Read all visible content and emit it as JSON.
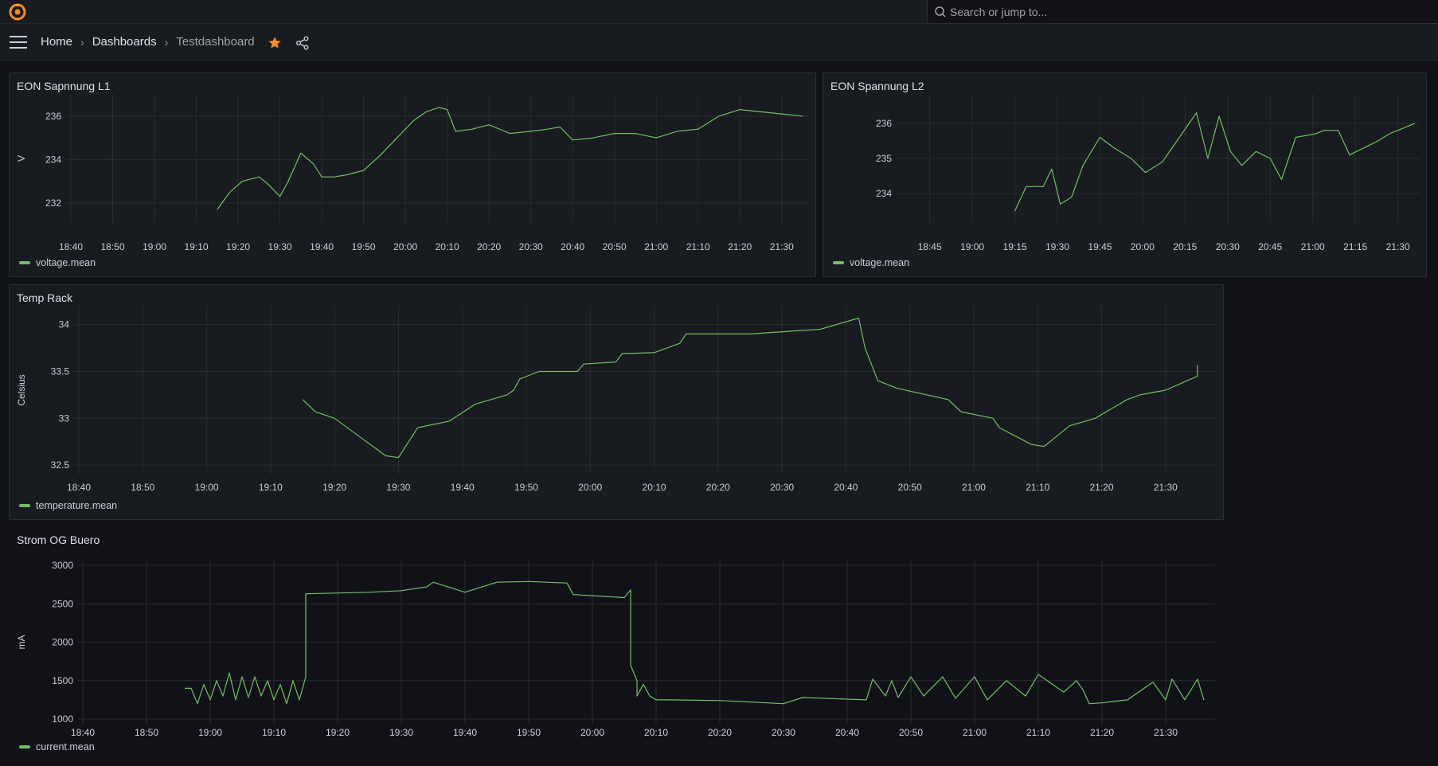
{
  "app": {
    "search_placeholder": "Search or jump to...",
    "logo": "grafana-logo-icon",
    "accent": "#f68a27"
  },
  "breadcrumb": {
    "home": "Home",
    "dashboards": "Dashboards",
    "current": "Testdashboard",
    "separator": "›"
  },
  "icons": {
    "menu": "hamburger-menu-icon",
    "star": "star-icon",
    "share": "share-icon",
    "search": "search-icon"
  },
  "series_color": "#73bf69",
  "panels": {
    "l1": {
      "title": "EON Sapnnung L1",
      "legend": "voltage.mean",
      "ylabel": "V"
    },
    "l2": {
      "title": "EON Spannung L2",
      "legend": "voltage.mean",
      "ylabel": ""
    },
    "temp": {
      "title": "Temp Rack",
      "legend": "temperature.mean",
      "ylabel": "Celsius"
    },
    "strom": {
      "title": "Strom OG Buero",
      "legend": "current.mean",
      "ylabel": "mA"
    }
  },
  "chart_data": [
    {
      "type": "line",
      "title": "EON Sapnnung L1",
      "ylabel": "V",
      "x_ticks": [
        "18:40",
        "18:50",
        "19:00",
        "19:10",
        "19:20",
        "19:30",
        "19:40",
        "19:50",
        "20:00",
        "20:10",
        "20:20",
        "20:30",
        "20:40",
        "20:50",
        "21:00",
        "21:10",
        "21:20",
        "21:30"
      ],
      "y_ticks": [
        232,
        234,
        236
      ],
      "xlim": [
        "18:40",
        "21:35"
      ],
      "ylim": [
        231.3,
        236.8
      ],
      "series": [
        {
          "name": "voltage.mean",
          "x": [
            "19:15",
            "19:18",
            "19:21",
            "19:25",
            "19:27",
            "19:30",
            "19:32",
            "19:35",
            "19:38",
            "19:40",
            "19:43",
            "19:46",
            "19:50",
            "19:54",
            "19:58",
            "20:02",
            "20:05",
            "20:08",
            "20:10",
            "20:12",
            "20:16",
            "20:20",
            "20:25",
            "20:30",
            "20:34",
            "20:37",
            "20:40",
            "20:45",
            "20:50",
            "20:55",
            "21:00",
            "21:05",
            "21:10",
            "21:15",
            "21:20",
            "21:25",
            "21:30",
            "21:35"
          ],
          "y": [
            231.7,
            232.5,
            233.0,
            233.2,
            232.9,
            232.3,
            233.0,
            234.3,
            233.8,
            233.2,
            233.2,
            233.3,
            233.5,
            234.2,
            235.0,
            235.8,
            236.2,
            236.4,
            236.3,
            235.3,
            235.4,
            235.6,
            235.2,
            235.3,
            235.4,
            235.5,
            234.9,
            235.0,
            235.2,
            235.2,
            235.0,
            235.3,
            235.4,
            236.0,
            236.3,
            236.2,
            236.1,
            236.0
          ]
        }
      ]
    },
    {
      "type": "line",
      "title": "EON Spannung L2",
      "x_ticks": [
        "18:45",
        "19:00",
        "19:15",
        "19:30",
        "19:45",
        "20:00",
        "20:15",
        "20:30",
        "20:45",
        "21:00",
        "21:15",
        "21:30"
      ],
      "y_ticks": [
        234,
        235,
        236
      ],
      "xlim": [
        "18:35",
        "21:36"
      ],
      "ylim": [
        233.3,
        236.7
      ],
      "series": [
        {
          "name": "voltage.mean",
          "x": [
            "19:15",
            "19:19",
            "19:25",
            "19:28",
            "19:31",
            "19:35",
            "19:39",
            "19:45",
            "19:50",
            "19:56",
            "20:01",
            "20:07",
            "20:13",
            "20:19",
            "20:23",
            "20:27",
            "20:31",
            "20:35",
            "20:40",
            "20:45",
            "20:49",
            "20:54",
            "21:01",
            "21:04",
            "21:09",
            "21:13",
            "21:23",
            "21:27",
            "21:36"
          ],
          "y": [
            233.5,
            234.2,
            234.2,
            234.7,
            233.7,
            233.9,
            234.8,
            235.6,
            235.3,
            235.0,
            234.6,
            234.9,
            235.6,
            236.3,
            235.0,
            236.2,
            235.2,
            234.8,
            235.2,
            235.0,
            234.4,
            235.6,
            235.7,
            235.8,
            235.8,
            235.1,
            235.5,
            235.7,
            236.0
          ]
        }
      ]
    },
    {
      "type": "line",
      "title": "Temp Rack",
      "ylabel": "Celsius",
      "x_ticks": [
        "18:40",
        "18:50",
        "19:00",
        "19:10",
        "19:20",
        "19:30",
        "19:40",
        "19:50",
        "20:00",
        "20:10",
        "20:20",
        "20:30",
        "20:40",
        "20:50",
        "21:00",
        "21:10",
        "21:20",
        "21:30"
      ],
      "y_ticks": [
        32.5,
        33,
        33.5,
        34
      ],
      "xlim": [
        "18:40",
        "21:37"
      ],
      "ylim": [
        32.45,
        34.15
      ],
      "series": [
        {
          "name": "temperature.mean",
          "x": [
            "19:15",
            "19:17",
            "19:20",
            "19:24",
            "19:28",
            "19:30",
            "19:33",
            "19:38",
            "19:42",
            "19:47",
            "19:48",
            "19:49",
            "19:52",
            "19:58",
            "19:59",
            "20:04",
            "20:05",
            "20:10",
            "20:14",
            "20:15",
            "20:25",
            "20:36",
            "20:42",
            "20:43",
            "20:45",
            "20:48",
            "20:56",
            "20:58",
            "21:03",
            "21:04",
            "21:09",
            "21:11",
            "21:15",
            "21:19",
            "21:24",
            "21:26",
            "21:30",
            "21:35",
            "21:35"
          ],
          "y": [
            33.2,
            33.07,
            33.0,
            32.8,
            32.6,
            32.58,
            32.9,
            32.97,
            33.15,
            33.25,
            33.3,
            33.42,
            33.5,
            33.5,
            33.58,
            33.6,
            33.69,
            33.7,
            33.8,
            33.9,
            33.9,
            33.95,
            34.07,
            33.75,
            33.4,
            33.32,
            33.2,
            33.07,
            33.0,
            32.9,
            32.72,
            32.7,
            32.92,
            33.0,
            33.2,
            33.25,
            33.3,
            33.45,
            33.57
          ]
        }
      ]
    },
    {
      "type": "line",
      "title": "Strom OG Buero",
      "ylabel": "mA",
      "x_ticks": [
        "18:40",
        "18:50",
        "19:00",
        "19:10",
        "19:20",
        "19:30",
        "19:40",
        "19:50",
        "20:00",
        "20:10",
        "20:20",
        "20:30",
        "20:40",
        "20:50",
        "21:00",
        "21:10",
        "21:20",
        "21:30"
      ],
      "y_ticks": [
        1000,
        1500,
        2000,
        2500,
        3000
      ],
      "xlim": [
        "18:40",
        "21:37"
      ],
      "ylim": [
        1000,
        3000
      ],
      "series": [
        {
          "name": "current.mean",
          "x": [
            "18:56",
            "18:57",
            "18:58",
            "18:59",
            "19:00",
            "19:01",
            "19:02",
            "19:03",
            "19:04",
            "19:05",
            "19:06",
            "19:07",
            "19:08",
            "19:09",
            "19:10",
            "19:11",
            "19:12",
            "19:13",
            "19:14",
            "19:15",
            "19:15",
            "19:25",
            "19:30",
            "19:34",
            "19:35",
            "19:40",
            "19:45",
            "19:50",
            "19:56",
            "19:57",
            "20:05",
            "20:06",
            "20:06",
            "20:07",
            "20:07",
            "20:08",
            "20:09",
            "20:10",
            "20:11",
            "20:12",
            "20:20",
            "20:30",
            "20:33",
            "20:43",
            "20:44",
            "20:46",
            "20:47",
            "20:48",
            "20:50",
            "20:52",
            "20:55",
            "20:57",
            "21:00",
            "21:02",
            "21:05",
            "21:08",
            "21:10",
            "21:14",
            "21:16",
            "21:17",
            "21:18",
            "21:20",
            "21:24",
            "21:28",
            "21:30",
            "21:31",
            "21:33",
            "21:35",
            "21:36"
          ],
          "y": [
            1400,
            1400,
            1200,
            1450,
            1250,
            1500,
            1300,
            1600,
            1250,
            1550,
            1280,
            1550,
            1300,
            1500,
            1250,
            1450,
            1200,
            1500,
            1250,
            1550,
            2630,
            2650,
            2670,
            2720,
            2780,
            2650,
            2780,
            2790,
            2770,
            2620,
            2580,
            2680,
            1700,
            1500,
            1300,
            1450,
            1300,
            1250,
            1250,
            1250,
            1240,
            1200,
            1280,
            1250,
            1520,
            1300,
            1500,
            1280,
            1550,
            1300,
            1550,
            1270,
            1550,
            1250,
            1500,
            1300,
            1580,
            1350,
            1500,
            1380,
            1200,
            1210,
            1250,
            1480,
            1250,
            1520,
            1250,
            1520,
            1250
          ]
        }
      ]
    }
  ]
}
